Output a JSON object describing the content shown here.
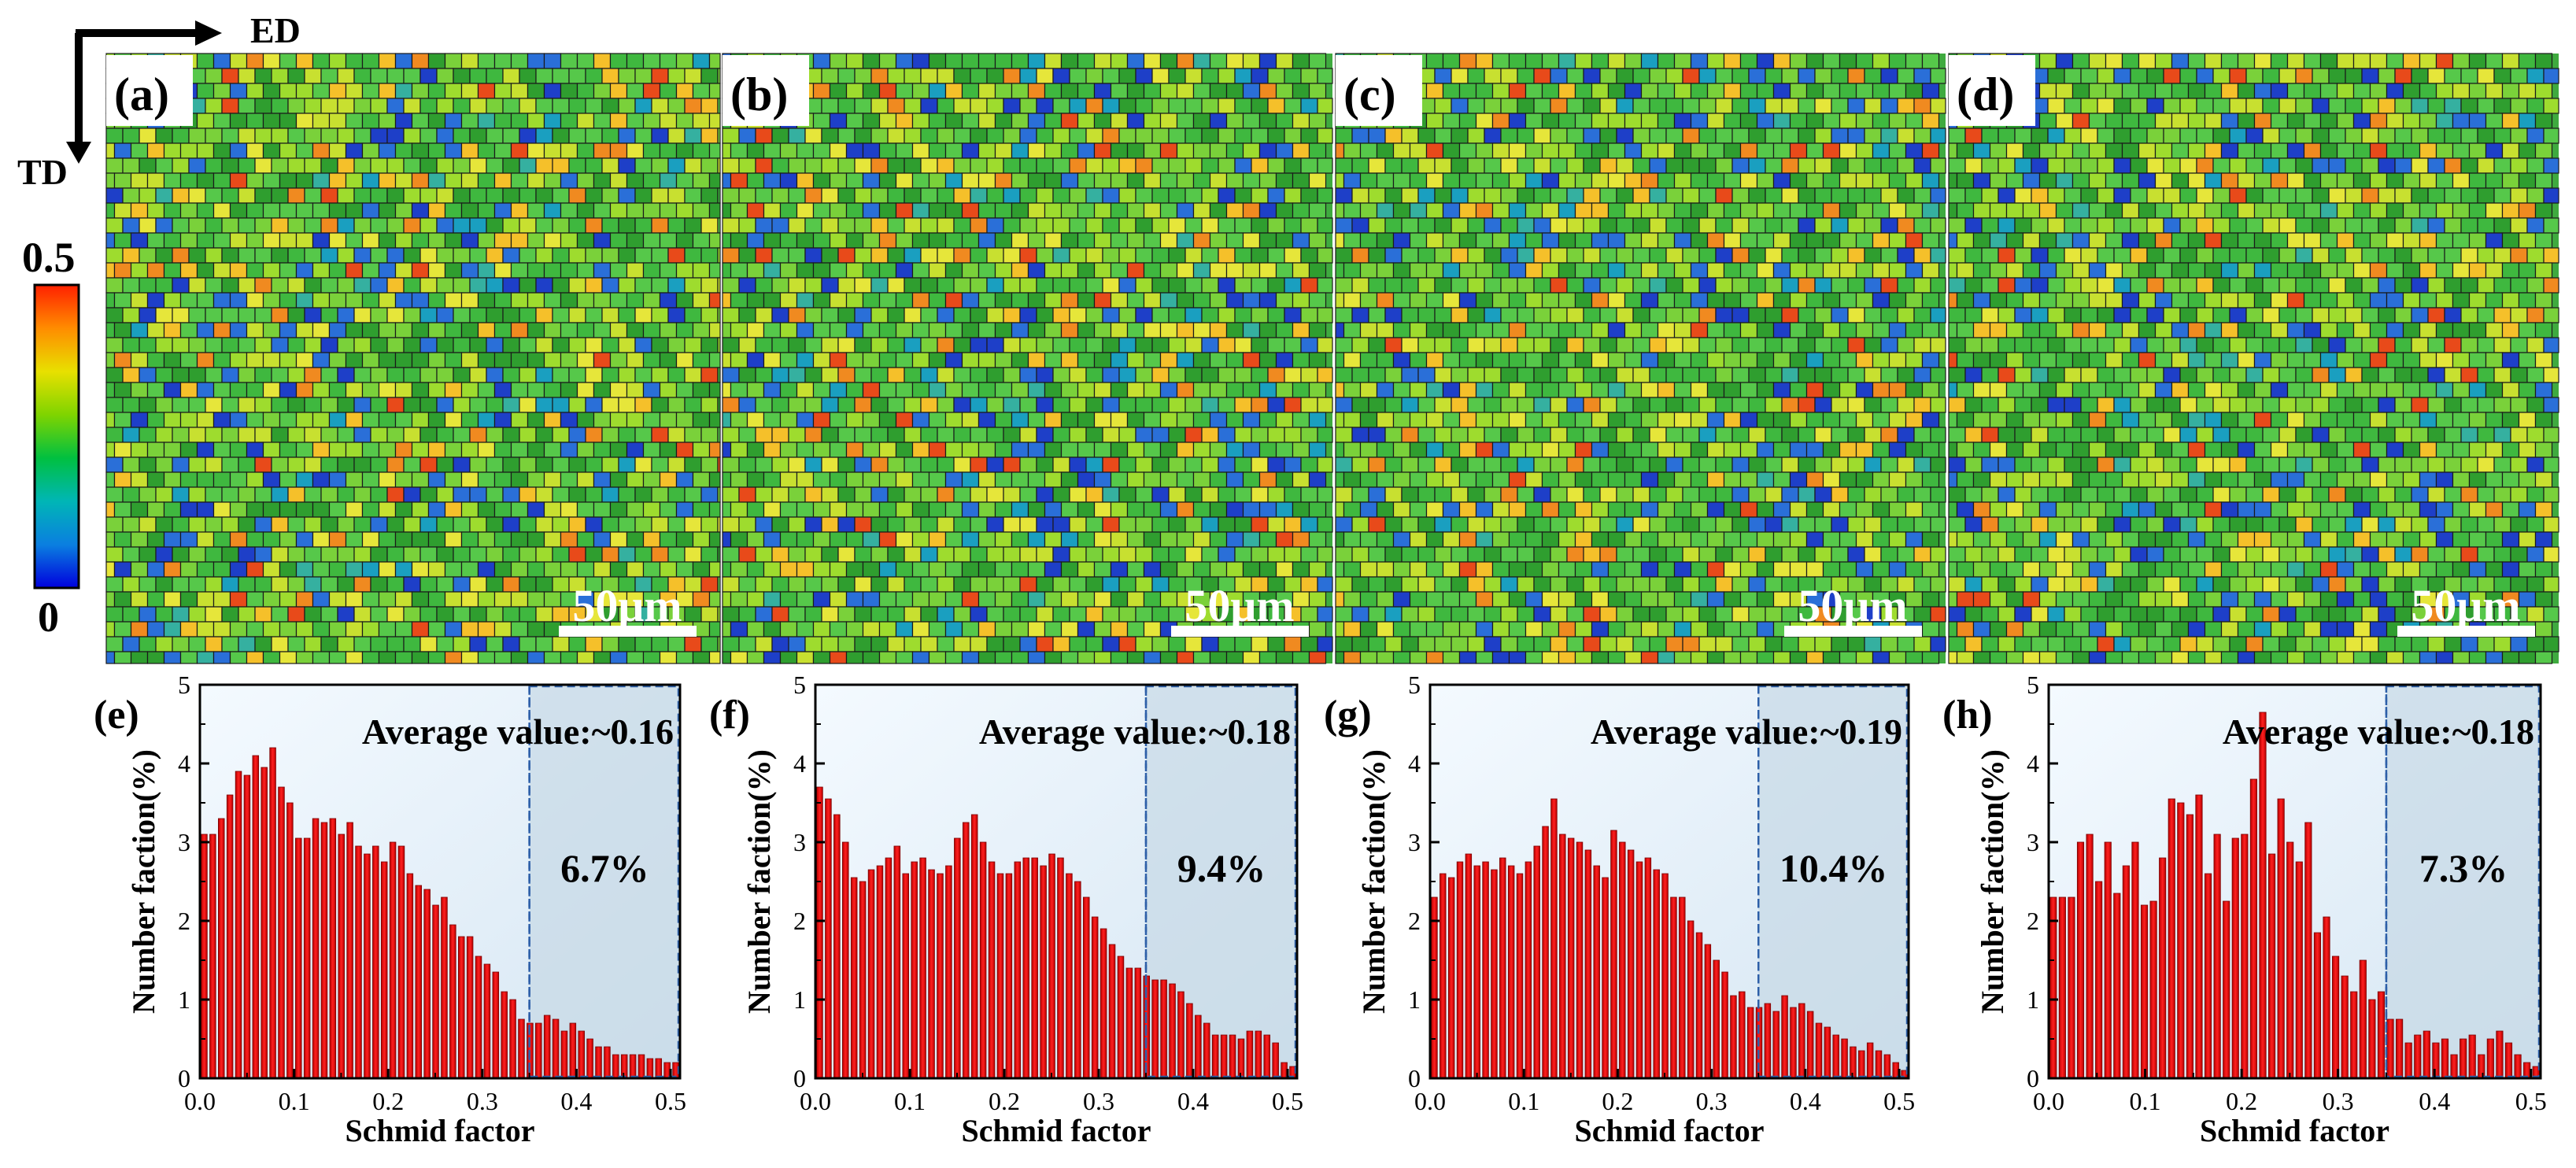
{
  "figure": {
    "axis_ed": "ED",
    "axis_td": "TD",
    "colorbar": {
      "max_label": "0.5",
      "min_label": "0",
      "colors": [
        "#0000dd",
        "#0a7fe0",
        "#00b6b6",
        "#00c040",
        "#7fd400",
        "#e8e000",
        "#ff8c00",
        "#ff2000"
      ]
    },
    "maps": [
      {
        "label": "(a)",
        "scale_bar": "50μm"
      },
      {
        "label": "(b)",
        "scale_bar": "50μm"
      },
      {
        "label": "(c)",
        "scale_bar": "50μm"
      },
      {
        "label": "(d)",
        "scale_bar": "50μm"
      }
    ],
    "map_palette": [
      "#2f9e2f",
      "#3fb83f",
      "#56c84a",
      "#7ad13a",
      "#9edc2e",
      "#c8e030",
      "#e6e63a",
      "#f5c02a",
      "#f08a20",
      "#e84a1a",
      "#2a6fd8",
      "#1e3fc8",
      "#1a9fc0",
      "#35b0a0"
    ]
  },
  "chart_data": [
    {
      "type": "bar",
      "panel": "(e)",
      "annotation": "Average value:~0.16",
      "percentage": "6.7%",
      "xlabel": "Schmid factor",
      "ylabel": "Number faction(%)",
      "xlim": [
        0,
        0.51
      ],
      "ylim": [
        0,
        5
      ],
      "threshold": 0.35,
      "xticks": [
        "0.0",
        "0.1",
        "0.2",
        "0.3",
        "0.4",
        "0.5"
      ],
      "yticks": [
        "0",
        "1",
        "2",
        "3",
        "4",
        "5"
      ],
      "values": [
        3.1,
        3.1,
        3.3,
        3.6,
        3.9,
        3.85,
        4.1,
        3.95,
        4.2,
        3.7,
        3.5,
        3.05,
        3.05,
        3.3,
        3.25,
        3.3,
        3.1,
        3.25,
        2.95,
        2.85,
        2.95,
        2.75,
        3.0,
        2.95,
        2.6,
        2.45,
        2.4,
        2.2,
        2.3,
        1.95,
        1.8,
        1.8,
        1.55,
        1.45,
        1.35,
        1.1,
        1.0,
        0.75,
        0.7,
        0.7,
        0.8,
        0.75,
        0.6,
        0.7,
        0.6,
        0.5,
        0.4,
        0.4,
        0.3,
        0.3,
        0.3,
        0.3,
        0.25,
        0.25,
        0.2,
        0.2
      ]
    },
    {
      "type": "bar",
      "panel": "(f)",
      "annotation": "Average value:~0.18",
      "percentage": "9.4%",
      "xlabel": "Schmid factor",
      "ylabel": "Number faction(%)",
      "xlim": [
        0,
        0.51
      ],
      "ylim": [
        0,
        5
      ],
      "threshold": 0.35,
      "xticks": [
        "0.0",
        "0.1",
        "0.2",
        "0.3",
        "0.4",
        "0.5"
      ],
      "yticks": [
        "0",
        "1",
        "2",
        "3",
        "4",
        "5"
      ],
      "values": [
        3.7,
        3.55,
        3.35,
        3.0,
        2.55,
        2.5,
        2.65,
        2.7,
        2.8,
        2.95,
        2.6,
        2.75,
        2.8,
        2.65,
        2.6,
        2.7,
        3.05,
        3.25,
        3.35,
        3.0,
        2.75,
        2.6,
        2.6,
        2.75,
        2.8,
        2.8,
        2.7,
        2.85,
        2.8,
        2.6,
        2.5,
        2.3,
        2.05,
        1.9,
        1.7,
        1.55,
        1.4,
        1.4,
        1.3,
        1.25,
        1.25,
        1.2,
        1.1,
        0.95,
        0.8,
        0.7,
        0.55,
        0.55,
        0.55,
        0.5,
        0.6,
        0.6,
        0.55,
        0.45,
        0.2,
        0.15
      ]
    },
    {
      "type": "bar",
      "panel": "(g)",
      "annotation": "Average value:~0.19",
      "percentage": "10.4%",
      "xlabel": "Schmid factor",
      "ylabel": "Number faction(%)",
      "xlim": [
        0,
        0.51
      ],
      "ylim": [
        0,
        5
      ],
      "threshold": 0.35,
      "xticks": [
        "0.0",
        "0.1",
        "0.2",
        "0.3",
        "0.4",
        "0.5"
      ],
      "yticks": [
        "0",
        "1",
        "2",
        "3",
        "4",
        "5"
      ],
      "values": [
        2.3,
        2.6,
        2.55,
        2.75,
        2.85,
        2.7,
        2.75,
        2.65,
        2.8,
        2.7,
        2.6,
        2.75,
        2.95,
        3.2,
        3.55,
        3.1,
        3.05,
        3.0,
        2.9,
        2.7,
        2.55,
        3.15,
        3.0,
        2.9,
        2.75,
        2.8,
        2.65,
        2.6,
        2.3,
        2.3,
        2.0,
        1.85,
        1.7,
        1.5,
        1.35,
        1.05,
        1.1,
        0.9,
        0.9,
        0.95,
        0.85,
        1.05,
        0.9,
        0.95,
        0.85,
        0.7,
        0.65,
        0.55,
        0.5,
        0.4,
        0.35,
        0.45,
        0.35,
        0.3,
        0.2,
        0.1
      ]
    },
    {
      "type": "bar",
      "panel": "(h)",
      "annotation": "Average value:~0.18",
      "percentage": "7.3%",
      "xlabel": "Schmid factor",
      "ylabel": "Number faction(%)",
      "xlim": [
        0,
        0.51
      ],
      "ylim": [
        0,
        5
      ],
      "threshold": 0.35,
      "xticks": [
        "0.0",
        "0.1",
        "0.2",
        "0.3",
        "0.4",
        "0.5"
      ],
      "yticks": [
        "0",
        "1",
        "2",
        "3",
        "4",
        "5"
      ],
      "values": [
        2.3,
        2.3,
        2.3,
        3.0,
        3.1,
        2.5,
        3.0,
        2.35,
        2.7,
        3.0,
        2.2,
        2.25,
        2.8,
        3.55,
        3.5,
        3.35,
        3.6,
        2.6,
        3.1,
        2.25,
        3.05,
        3.1,
        3.8,
        4.65,
        2.85,
        3.55,
        3.0,
        2.75,
        3.25,
        1.85,
        2.05,
        1.55,
        1.3,
        1.1,
        1.5,
        1.0,
        1.1,
        0.75,
        0.75,
        0.45,
        0.55,
        0.6,
        0.45,
        0.5,
        0.3,
        0.5,
        0.55,
        0.3,
        0.5,
        0.6,
        0.45,
        0.3,
        0.2,
        0.15
      ]
    }
  ]
}
